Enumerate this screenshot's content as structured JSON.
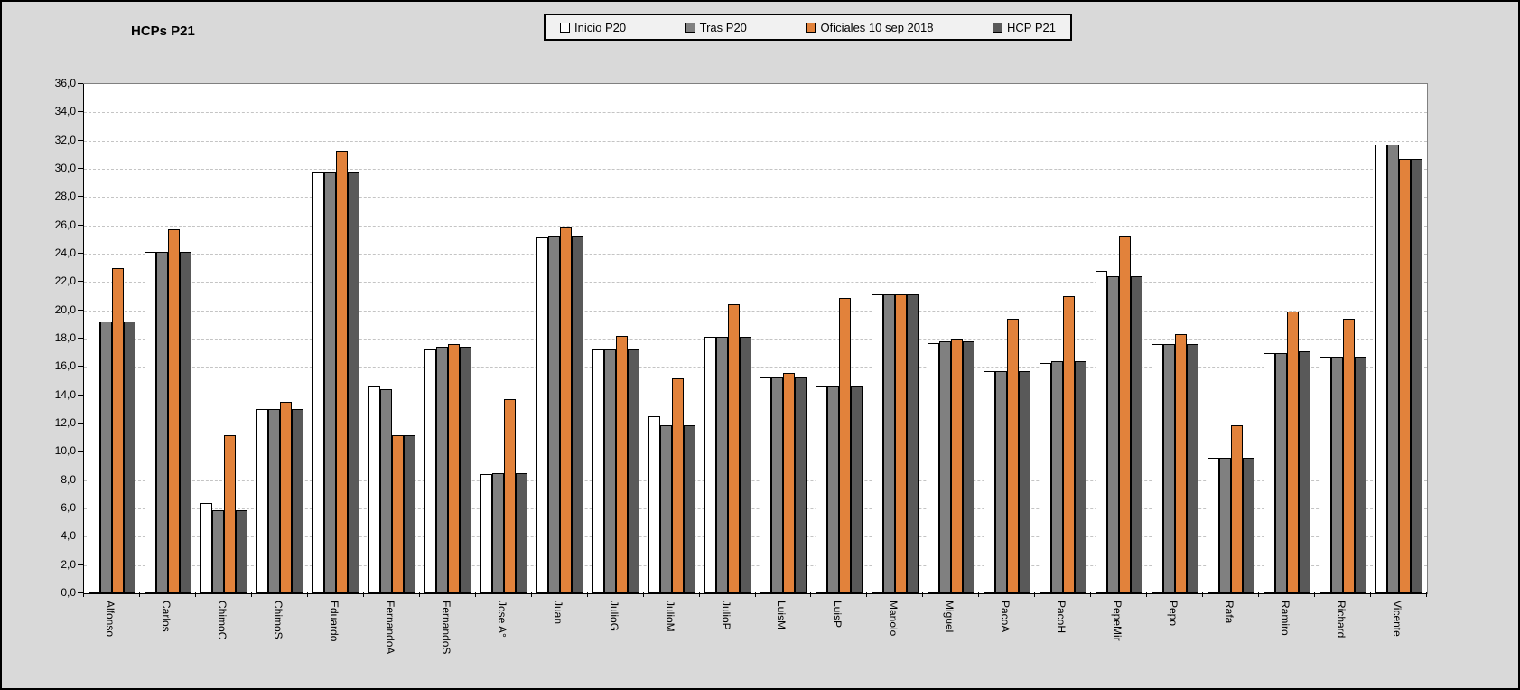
{
  "title": "HCPs P21",
  "background_color": "#D9D9D9",
  "plot_background_color": "#FFFFFF",
  "legend": {
    "items": [
      "Inicio P20",
      "Tras P20",
      "Oficiales 10 sep 2018",
      "HCP P21"
    ]
  },
  "y_axis": {
    "tick_labels": [
      "0,0",
      "2,0",
      "4,0",
      "6,0",
      "8,0",
      "10,0",
      "12,0",
      "14,0",
      "16,0",
      "18,0",
      "20,0",
      "22,0",
      "24,0",
      "26,0",
      "28,0",
      "30,0",
      "32,0",
      "34,0",
      "36,0"
    ],
    "min": 0,
    "max": 36,
    "step": 2
  },
  "chart_data": {
    "type": "bar",
    "title": "HCPs P21",
    "xlabel": "",
    "ylabel": "",
    "ylim": [
      0,
      36
    ],
    "ytick_step": 2,
    "grid": "horizontal-dashed",
    "legend_position": "top",
    "categories": [
      "Alfonso",
      "Carlos",
      "ChimoC",
      "ChimoS",
      "Eduardo",
      "FernandoA",
      "FernandoS",
      "Jose A°",
      "Juan",
      "JulioG",
      "JulioM",
      "JulioP",
      "LuisM",
      "LuisP",
      "Manolo",
      "Miguel",
      "PacoA",
      "PacoH",
      "PepeMir",
      "Pepo",
      "Rafa",
      "Ramiro",
      "Richard",
      "Vicente"
    ],
    "series": [
      {
        "name": "Inicio P20",
        "color": "#FFFFFF",
        "values": [
          19.2,
          24.1,
          6.4,
          13.0,
          29.8,
          14.7,
          17.3,
          8.4,
          25.2,
          17.3,
          12.5,
          18.1,
          15.3,
          14.7,
          21.1,
          17.7,
          15.7,
          16.3,
          22.8,
          17.6,
          9.6,
          17.0,
          16.7,
          31.7
        ]
      },
      {
        "name": "Tras P20",
        "color": "#808080",
        "values": [
          19.2,
          24.1,
          5.9,
          13.0,
          29.8,
          14.4,
          17.4,
          8.5,
          25.3,
          17.3,
          11.9,
          18.1,
          15.3,
          14.7,
          21.1,
          17.8,
          15.7,
          16.4,
          22.4,
          17.6,
          9.6,
          17.0,
          16.7,
          31.7
        ]
      },
      {
        "name": "Oficiales 10 sep 2018",
        "color": "#E2823B",
        "values": [
          23.0,
          25.7,
          11.2,
          13.5,
          31.3,
          11.2,
          17.6,
          13.7,
          25.9,
          18.2,
          15.2,
          20.4,
          15.6,
          20.9,
          21.1,
          18.0,
          19.4,
          21.0,
          25.3,
          18.3,
          11.9,
          19.9,
          19.4,
          30.7
        ]
      },
      {
        "name": "HCP P21",
        "color": "#595959",
        "values": [
          19.2,
          24.1,
          5.9,
          13.0,
          29.8,
          11.2,
          17.4,
          8.5,
          25.3,
          17.3,
          11.9,
          18.1,
          15.3,
          14.7,
          21.1,
          17.8,
          15.7,
          16.4,
          22.4,
          17.6,
          9.6,
          17.1,
          16.7,
          30.7
        ]
      }
    ]
  }
}
